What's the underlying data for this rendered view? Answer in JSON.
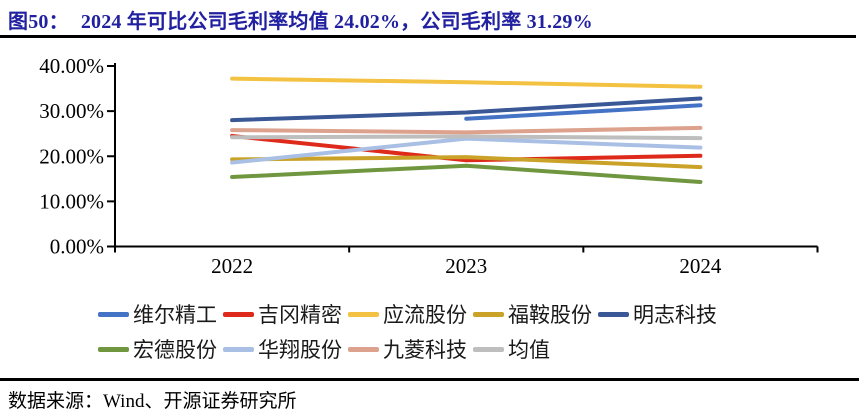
{
  "figure": {
    "label": "图50：",
    "title": "2024 年可比公司毛利率均值 24.02%，公司毛利率 31.29%"
  },
  "source": {
    "text": "数据来源：Wind、开源证券研究所"
  },
  "colors": {
    "title": "#2020A0",
    "axis": "#000000"
  },
  "chart_data": {
    "type": "line",
    "title": "2024 年可比公司毛利率均值 24.02%，公司毛利率 31.29%",
    "categories": [
      "2022",
      "2023",
      "2024"
    ],
    "unit": "percent",
    "ylim": [
      0,
      40
    ],
    "ytick_step": 10,
    "ytick_labels": [
      "0.00%",
      "10.00%",
      "20.00%",
      "30.00%",
      "40.00%"
    ],
    "grid": false,
    "legend_position": "bottom",
    "legend_rows": [
      [
        0,
        1,
        2,
        3,
        4
      ],
      [
        5,
        6,
        7,
        8
      ]
    ],
    "series": [
      {
        "name": "维尔精工",
        "color": "#4472C4",
        "values": [
          null,
          28.3,
          31.29
        ]
      },
      {
        "name": "吉冈精密",
        "color": "#DE2A1B",
        "values": [
          24.5,
          19.1,
          20.1
        ]
      },
      {
        "name": "应流股份",
        "color": "#F4C242",
        "values": [
          37.2,
          36.4,
          35.4
        ]
      },
      {
        "name": "福鞍股份",
        "color": "#C9A227",
        "values": [
          19.3,
          19.8,
          17.6
        ]
      },
      {
        "name": "明志科技",
        "color": "#3A5796",
        "values": [
          28.0,
          29.7,
          32.8
        ]
      },
      {
        "name": "宏德股份",
        "color": "#70973F",
        "values": [
          15.4,
          17.9,
          14.3
        ]
      },
      {
        "name": "华翔股份",
        "color": "#A9C0E4",
        "values": [
          18.6,
          23.9,
          21.9
        ]
      },
      {
        "name": "九菱科技",
        "color": "#DDA28D",
        "values": [
          25.8,
          25.3,
          26.3
        ]
      },
      {
        "name": "均值",
        "color": "#BEBEBE",
        "values": [
          24.2,
          24.4,
          24.02
        ]
      }
    ]
  }
}
